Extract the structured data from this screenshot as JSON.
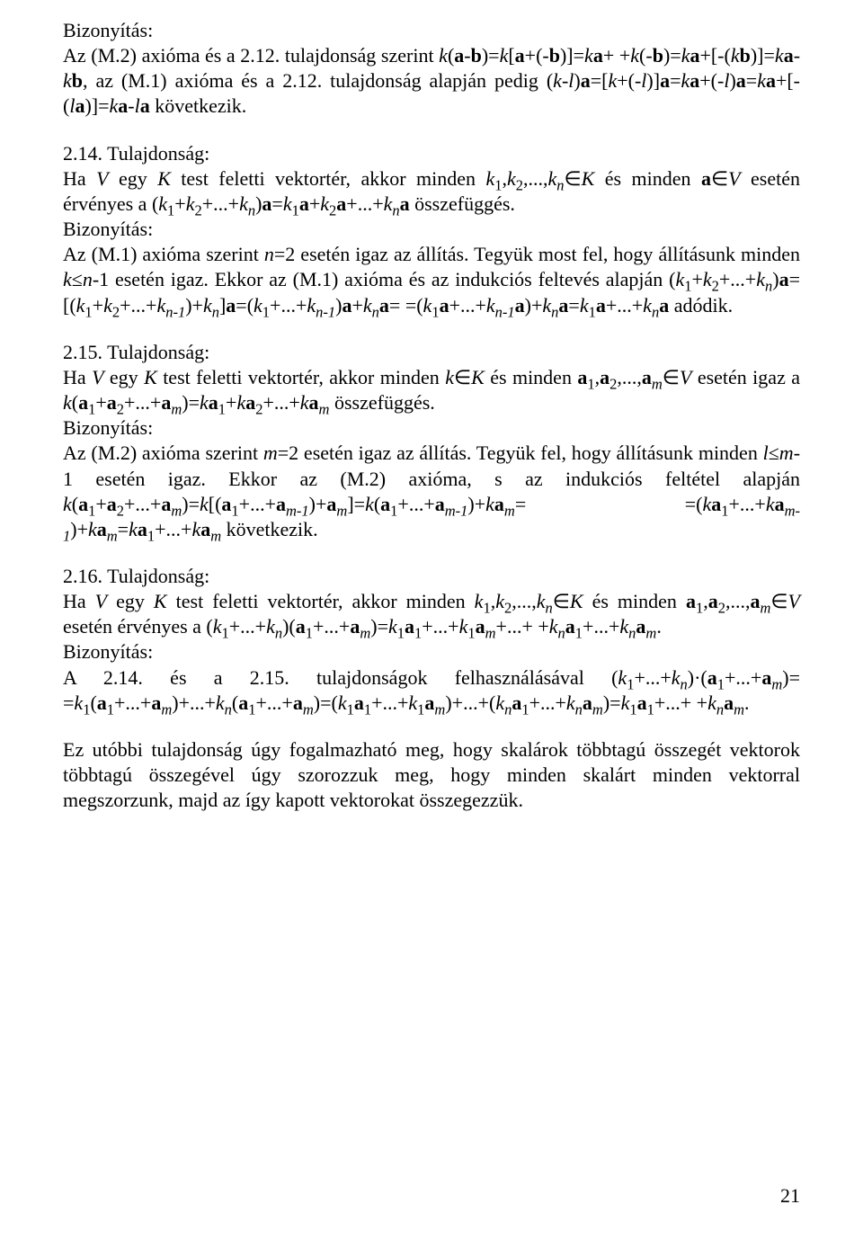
{
  "page_number": "21",
  "p1": {
    "l1": "Bizonyítás:",
    "l2_a": "Az (M.2) axióma és a 2.12. tulajdonság szerint ",
    "l2_b": "k",
    "l2_c": "(",
    "l2_d": "a",
    "l2_e": "-",
    "l2_f": "b",
    "l2_g": ")=",
    "l2_h": "k",
    "l2_i": "[",
    "l2_j": "a",
    "l2_k": "+(-",
    "l2_l": "b",
    "l2_m": ")]=",
    "l2_n": "k",
    "l2_o": "a",
    "l2_p": "+",
    "l3_a": "+",
    "l3_b": "k",
    "l3_c": "(-",
    "l3_d": "b",
    "l3_e": ")=",
    "l3_f": "k",
    "l3_g": "a",
    "l3_h": "+[-(",
    "l3_i": "k",
    "l3_j": "b",
    "l3_k": ")]=",
    "l3_l": "k",
    "l3_m": "a",
    "l3_n": "-",
    "l3_o": "k",
    "l3_p": "b",
    "l3_q": ", az (M.1) axióma és a 2.12. tulajdonság alapján",
    "l4_a": "pedig (",
    "l4_b": "k",
    "l4_c": "-",
    "l4_d": "l",
    "l4_e": ")",
    "l4_f": "a",
    "l4_g": "=[",
    "l4_h": "k",
    "l4_i": "+(-",
    "l4_j": "l",
    "l4_k": ")]",
    "l4_l": "a",
    "l4_m": "=",
    "l4_n": "k",
    "l4_o": "a",
    "l4_p": "+(-",
    "l4_q": "l",
    "l4_r": ")",
    "l4_s": "a",
    "l4_t": "=",
    "l4_u": "k",
    "l4_v": "a",
    "l4_w": "+[-(",
    "l4_x": "l",
    "l4_y": "a",
    "l4_z": ")]=",
    "l4_aa": "k",
    "l4_ab": "a",
    "l4_ac": "-",
    "l4_ad": "l",
    "l4_ae": "a",
    "l4_af": " következik."
  },
  "p2": {
    "l1": "2.14. Tulajdonság:",
    "l2_a": "Ha ",
    "l2_b": "V",
    "l2_c": " egy ",
    "l2_d": "K",
    "l2_e": " test feletti vektortér, akkor minden ",
    "l2_f": "k",
    "l2_g": "1",
    "l2_h": ",",
    "l2_i": "k",
    "l2_j": "2",
    "l2_k": ",...,",
    "l2_l": "k",
    "l2_m": "n",
    "l2_n": "∈",
    "l2_o": "K",
    "l2_p": " és minden ",
    "l2_q": "a",
    "l2_r": "∈",
    "l2_s": "V",
    "l3_a": "esetén érvényes a (",
    "l3_b": "k",
    "l3_c": "1",
    "l3_d": "+",
    "l3_e": "k",
    "l3_f": "2",
    "l3_g": "+...+",
    "l3_h": "k",
    "l3_i": "n",
    "l3_j": ")",
    "l3_k": "a",
    "l3_l": "=",
    "l3_m": "k",
    "l3_n": "1",
    "l3_o": "a",
    "l3_p": "+",
    "l3_q": "k",
    "l3_r": "2",
    "l3_s": "a",
    "l3_t": "+...+",
    "l3_u": "k",
    "l3_v": "n",
    "l3_w": "a",
    "l3_x": " összefüggés.",
    "l4": "Bizonyítás:",
    "l5_a": "Az (M.1) axióma szerint ",
    "l5_b": "n",
    "l5_c": "=2 esetén igaz az állítás. Tegyük most fel, hogy",
    "l6_a": "állításunk minden ",
    "l6_b": "k",
    "l6_c": "≤",
    "l6_d": "n",
    "l6_e": "-1 esetén igaz. Ekkor az (M.1) axióma és az indukciós",
    "l7_a": "feltevés alapján (",
    "l7_b": "k",
    "l7_c": "1",
    "l7_d": "+",
    "l7_e": "k",
    "l7_f": "2",
    "l7_g": "+...+",
    "l7_h": "k",
    "l7_i": "n",
    "l7_j": ")",
    "l7_k": "a",
    "l7_l": "=[(",
    "l7_m": "k",
    "l7_n": "1",
    "l7_o": "+",
    "l7_p": "k",
    "l7_q": "2",
    "l7_r": "+...+",
    "l7_s": "k",
    "l7_t": "n-1",
    "l7_u": ")+",
    "l7_v": "k",
    "l7_w": "n",
    "l7_x": "]",
    "l7_y": "a",
    "l7_z": "=(",
    "l7_aa": "k",
    "l7_ab": "1",
    "l7_ac": "+...+",
    "l7_ad": "k",
    "l7_ae": "n-1",
    "l7_af": ")",
    "l7_ag": "a",
    "l7_ah": "+",
    "l7_ai": "k",
    "l7_aj": "n",
    "l7_ak": "a",
    "l7_al": "=",
    "l8_a": "=(",
    "l8_b": "k",
    "l8_c": "1",
    "l8_d": "a",
    "l8_e": "+...+",
    "l8_f": "k",
    "l8_g": "n-1",
    "l8_h": "a",
    "l8_i": ")+",
    "l8_j": "k",
    "l8_k": "n",
    "l8_l": "a",
    "l8_m": "=",
    "l8_n": "k",
    "l8_o": "1",
    "l8_p": "a",
    "l8_q": "+...+",
    "l8_r": "k",
    "l8_s": "n",
    "l8_t": "a",
    "l8_u": " adódik."
  },
  "p3": {
    "l1": "2.15. Tulajdonság:",
    "l2_a": "Ha ",
    "l2_b": "V",
    "l2_c": " egy ",
    "l2_d": "K",
    "l2_e": " test feletti vektortér, akkor minden ",
    "l2_f": "k",
    "l2_g": "∈",
    "l2_h": "K",
    "l2_i": " és minden ",
    "l2_j": "a",
    "l2_k": "1",
    "l2_l": ",",
    "l2_m": "a",
    "l2_n": "2",
    "l2_o": ",...,",
    "l2_p": "a",
    "l2_q": "m",
    "l2_r": "∈",
    "l2_s": "V",
    "l3_a": "esetén igaz a ",
    "l3_b": "k",
    "l3_c": "(",
    "l3_d": "a",
    "l3_e": "1",
    "l3_f": "+",
    "l3_g": "a",
    "l3_h": "2",
    "l3_i": "+...+",
    "l3_j": "a",
    "l3_k": "m",
    "l3_l": ")=",
    "l3_m": "k",
    "l3_n": "a",
    "l3_o": "1",
    "l3_p": "+",
    "l3_q": "k",
    "l3_r": "a",
    "l3_s": "2",
    "l3_t": "+...+",
    "l3_u": "k",
    "l3_v": "a",
    "l3_w": "m",
    "l3_x": " összefüggés.",
    "l4": "Bizonyítás:",
    "l5_a": "Az (M.2) axióma szerint ",
    "l5_b": "m",
    "l5_c": "=2 esetén igaz az állítás. Tegyük fel, hogy",
    "l6_a": "állításunk minden ",
    "l6_b": "l",
    "l6_c": "≤",
    "l6_d": "m",
    "l6_e": "-1 esetén igaz. Ekkor az (M.2) axióma, s az indukciós",
    "l7_a": "feltétel alapján ",
    "l7_b": "k",
    "l7_c": "(",
    "l7_d": "a",
    "l7_e": "1",
    "l7_f": "+",
    "l7_g": "a",
    "l7_h": "2",
    "l7_i": "+...+",
    "l7_j": "a",
    "l7_k": "m",
    "l7_l": ")=",
    "l7_m": "k",
    "l7_n": "[(",
    "l7_o": "a",
    "l7_p": "1",
    "l7_q": "+...+",
    "l7_r": "a",
    "l7_s": "m-1",
    "l7_t": ")+",
    "l7_u": "a",
    "l7_v": "m",
    "l7_w": "]=",
    "l7_x": "k",
    "l7_y": "(",
    "l7_z": "a",
    "l7_aa": "1",
    "l7_ab": "+...+",
    "l7_ac": "a",
    "l7_ad": "m-1",
    "l7_ae": ")+",
    "l7_af": "k",
    "l7_ag": "a",
    "l7_ah": "m",
    "l7_ai": "=",
    "l8_a": "=(",
    "l8_b": "k",
    "l8_c": "a",
    "l8_d": "1",
    "l8_e": "+...+",
    "l8_f": "k",
    "l8_g": "a",
    "l8_h": "m-1",
    "l8_i": ")+",
    "l8_j": "k",
    "l8_k": "a",
    "l8_l": "m",
    "l8_m": "=",
    "l8_n": "k",
    "l8_o": "a",
    "l8_p": "1",
    "l8_q": "+...+",
    "l8_r": "k",
    "l8_s": "a",
    "l8_t": "m",
    "l8_u": " következik."
  },
  "p4": {
    "l1": "2.16. Tulajdonság:",
    "l2_a": "Ha ",
    "l2_b": "V",
    "l2_c": " egy ",
    "l2_d": "K",
    "l2_e": " test feletti vektortér, akkor minden ",
    "l2_f": "k",
    "l2_g": "1",
    "l2_h": ",",
    "l2_i": "k",
    "l2_j": "2",
    "l2_k": ",...,",
    "l2_l": "k",
    "l2_m": "n",
    "l2_n": "∈",
    "l2_o": "K",
    "l2_p": " és minden",
    "l3_a": "a",
    "l3_b": "1",
    "l3_c": ",",
    "l3_d": "a",
    "l3_e": "2",
    "l3_f": ",...,",
    "l3_g": "a",
    "l3_h": "m",
    "l3_i": "∈",
    "l3_j": "V",
    "l3_k": " esetén érvényes a (",
    "l3_l": "k",
    "l3_m": "1",
    "l3_n": "+...+",
    "l3_o": "k",
    "l3_p": "n",
    "l3_q": ")(",
    "l3_r": "a",
    "l3_s": "1",
    "l3_t": "+...+",
    "l3_u": "a",
    "l3_v": "m",
    "l3_w": ")=",
    "l3_x": "k",
    "l3_y": "1",
    "l3_z": "a",
    "l3_aa": "1",
    "l3_ab": "+...+",
    "l3_ac": "k",
    "l3_ad": "1",
    "l3_ae": "a",
    "l3_af": "m",
    "l3_ag": "+...+",
    "l4_a": "+",
    "l4_b": "k",
    "l4_c": "n",
    "l4_d": "a",
    "l4_e": "1",
    "l4_f": "+...+",
    "l4_g": "k",
    "l4_h": "n",
    "l4_i": "a",
    "l4_j": "m",
    "l4_k": ".",
    "l5": "Bizonyítás:",
    "l6_a": "A 2.14. és a 2.15. tulajdonságok felhasználásával (",
    "l6_b": "k",
    "l6_c": "1",
    "l6_d": "+...+",
    "l6_e": "k",
    "l6_f": "n",
    "l6_g": ")·(",
    "l6_h": "a",
    "l6_i": "1",
    "l6_j": "+...+",
    "l6_k": "a",
    "l6_l": "m",
    "l6_m": ")=",
    "l7_a": "=",
    "l7_b": "k",
    "l7_c": "1",
    "l7_d": "(",
    "l7_e": "a",
    "l7_f": "1",
    "l7_g": "+...+",
    "l7_h": "a",
    "l7_i": "m",
    "l7_j": ")+...+",
    "l7_k": "k",
    "l7_l": "n",
    "l7_m": "(",
    "l7_n": "a",
    "l7_o": "1",
    "l7_p": "+...+",
    "l7_q": "a",
    "l7_r": "m",
    "l7_s": ")=(",
    "l7_t": "k",
    "l7_u": "1",
    "l7_v": "a",
    "l7_w": "1",
    "l7_x": "+...+",
    "l7_y": "k",
    "l7_z": "1",
    "l7_aa": "a",
    "l7_ab": "m",
    "l7_ac": ")+...+(",
    "l7_ad": "k",
    "l7_ae": "n",
    "l7_af": "a",
    "l7_ag": "1",
    "l7_ah": "+...+",
    "l7_ai": "k",
    "l7_aj": "n",
    "l7_ak": "a",
    "l7_al": "m",
    "l7_am": ")=",
    "l7_an": "k",
    "l7_ao": "1",
    "l7_ap": "a",
    "l7_aq": "1",
    "l7_ar": "+...+",
    "l8_a": "+",
    "l8_b": "k",
    "l8_c": "n",
    "l8_d": "a",
    "l8_e": "m",
    "l8_f": "."
  },
  "p5": {
    "text": "Ez utóbbi tulajdonság úgy fogalmazható meg, hogy skalárok többtagú összegét vektorok többtagú összegével úgy szorozzuk meg, hogy minden skalárt minden vektorral megszorzunk, majd az így kapott vektorokat össze­gezzük."
  }
}
